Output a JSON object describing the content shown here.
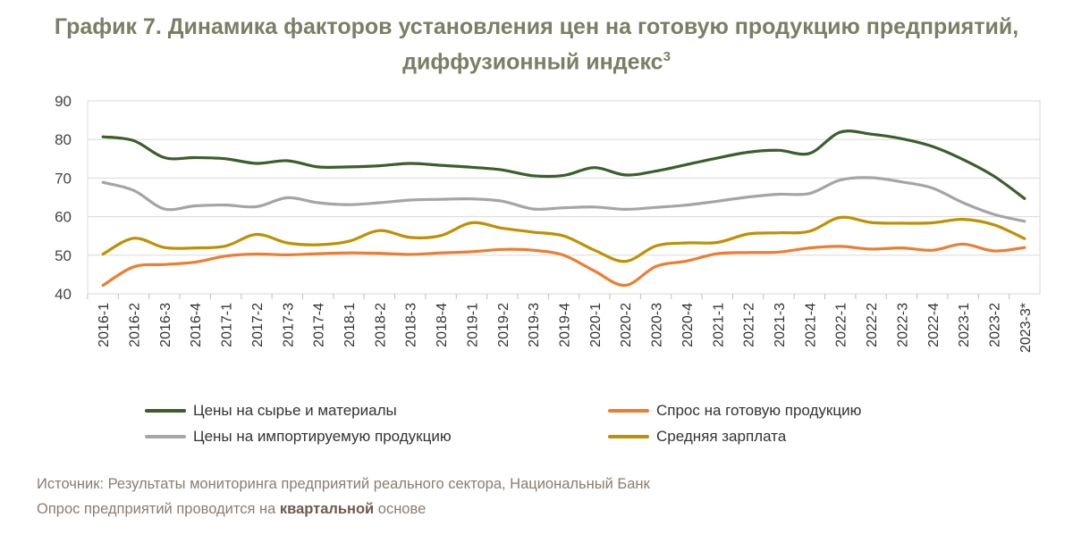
{
  "title": {
    "line1": "График 7. Динамика факторов установления цен на готовую продукцию предприятий,",
    "line2": "диффузионный индекс",
    "sup": "3"
  },
  "chart_data": {
    "type": "line",
    "categories": [
      "2016-1",
      "2016-2",
      "2016-3",
      "2016-4",
      "2017-1",
      "2017-2",
      "2017-3",
      "2017-4",
      "2018-1",
      "2018-2",
      "2018-3",
      "2018-4",
      "2019-1",
      "2019-2",
      "2019-3",
      "2019-4",
      "2020-1",
      "2020-2",
      "2020-3",
      "2020-4",
      "2021-1",
      "2021-2",
      "2021-3",
      "2021-4",
      "2022-1",
      "2022-2",
      "2022-3",
      "2022-4",
      "2023-1",
      "2023-2",
      "2023-3*"
    ],
    "ylim": [
      40,
      90
    ],
    "yticks": [
      40,
      50,
      60,
      70,
      80,
      90
    ],
    "grid": true,
    "legend_position": "bottom",
    "series": [
      {
        "name": "Цены на сырье и материалы",
        "color": "#3b5e2b",
        "values": [
          80.7,
          79.7,
          75.3,
          75.3,
          75.0,
          73.8,
          74.5,
          72.9,
          72.9,
          73.2,
          73.8,
          73.3,
          72.8,
          72.1,
          70.6,
          70.7,
          72.7,
          70.8,
          71.8,
          73.5,
          75.2,
          76.7,
          77.2,
          76.4,
          81.9,
          81.4,
          80.2,
          78.2,
          74.8,
          70.5,
          64.7
        ]
      },
      {
        "name": "Спрос на готовую продукцию",
        "color": "#ed7d31",
        "values": [
          42.2,
          47.0,
          47.6,
          48.2,
          49.8,
          50.3,
          50.1,
          50.4,
          50.6,
          50.5,
          50.2,
          50.6,
          50.9,
          51.5,
          51.3,
          50.0,
          45.9,
          42.2,
          47.1,
          48.5,
          50.4,
          50.7,
          50.8,
          51.9,
          52.3,
          51.6,
          51.9,
          51.3,
          52.9,
          51.1,
          52.0
        ]
      },
      {
        "name": "Цены на импортируемую продукцию",
        "color": "#a5a5a5",
        "values": [
          68.9,
          66.8,
          62.0,
          62.8,
          63.0,
          62.6,
          64.9,
          63.6,
          63.1,
          63.6,
          64.3,
          64.5,
          64.6,
          64.0,
          62.0,
          62.3,
          62.5,
          61.9,
          62.4,
          63.0,
          64.0,
          65.1,
          65.8,
          66.0,
          69.5,
          70.1,
          69.0,
          67.4,
          63.6,
          60.6,
          58.8
        ]
      },
      {
        "name": "Средняя зарплата",
        "color": "#bf9000",
        "values": [
          50.3,
          54.4,
          52.0,
          51.9,
          52.4,
          55.4,
          53.2,
          52.7,
          53.6,
          56.4,
          54.6,
          55.1,
          58.4,
          57.0,
          56.0,
          55.0,
          51.3,
          48.4,
          52.4,
          53.2,
          53.3,
          55.5,
          55.8,
          56.2,
          59.8,
          58.5,
          58.3,
          58.4,
          59.3,
          57.9,
          54.3
        ]
      }
    ]
  },
  "legend": [
    {
      "label": "Цены на сырье и материалы",
      "color": "#3b5e2b"
    },
    {
      "label": "Спрос на готовую продукцию",
      "color": "#ed7d31"
    },
    {
      "label": "Цены на импортируемую продукцию",
      "color": "#a5a5a5"
    },
    {
      "label": "Средняя зарплата",
      "color": "#bf9000"
    }
  ],
  "footer": {
    "source": "Источник: Результаты мониторинга предприятий реального сектора, Национальный Банк",
    "survey_prefix": "Опрос предприятий проводится на ",
    "survey_bold": "квартальной",
    "survey_suffix": " основе"
  }
}
